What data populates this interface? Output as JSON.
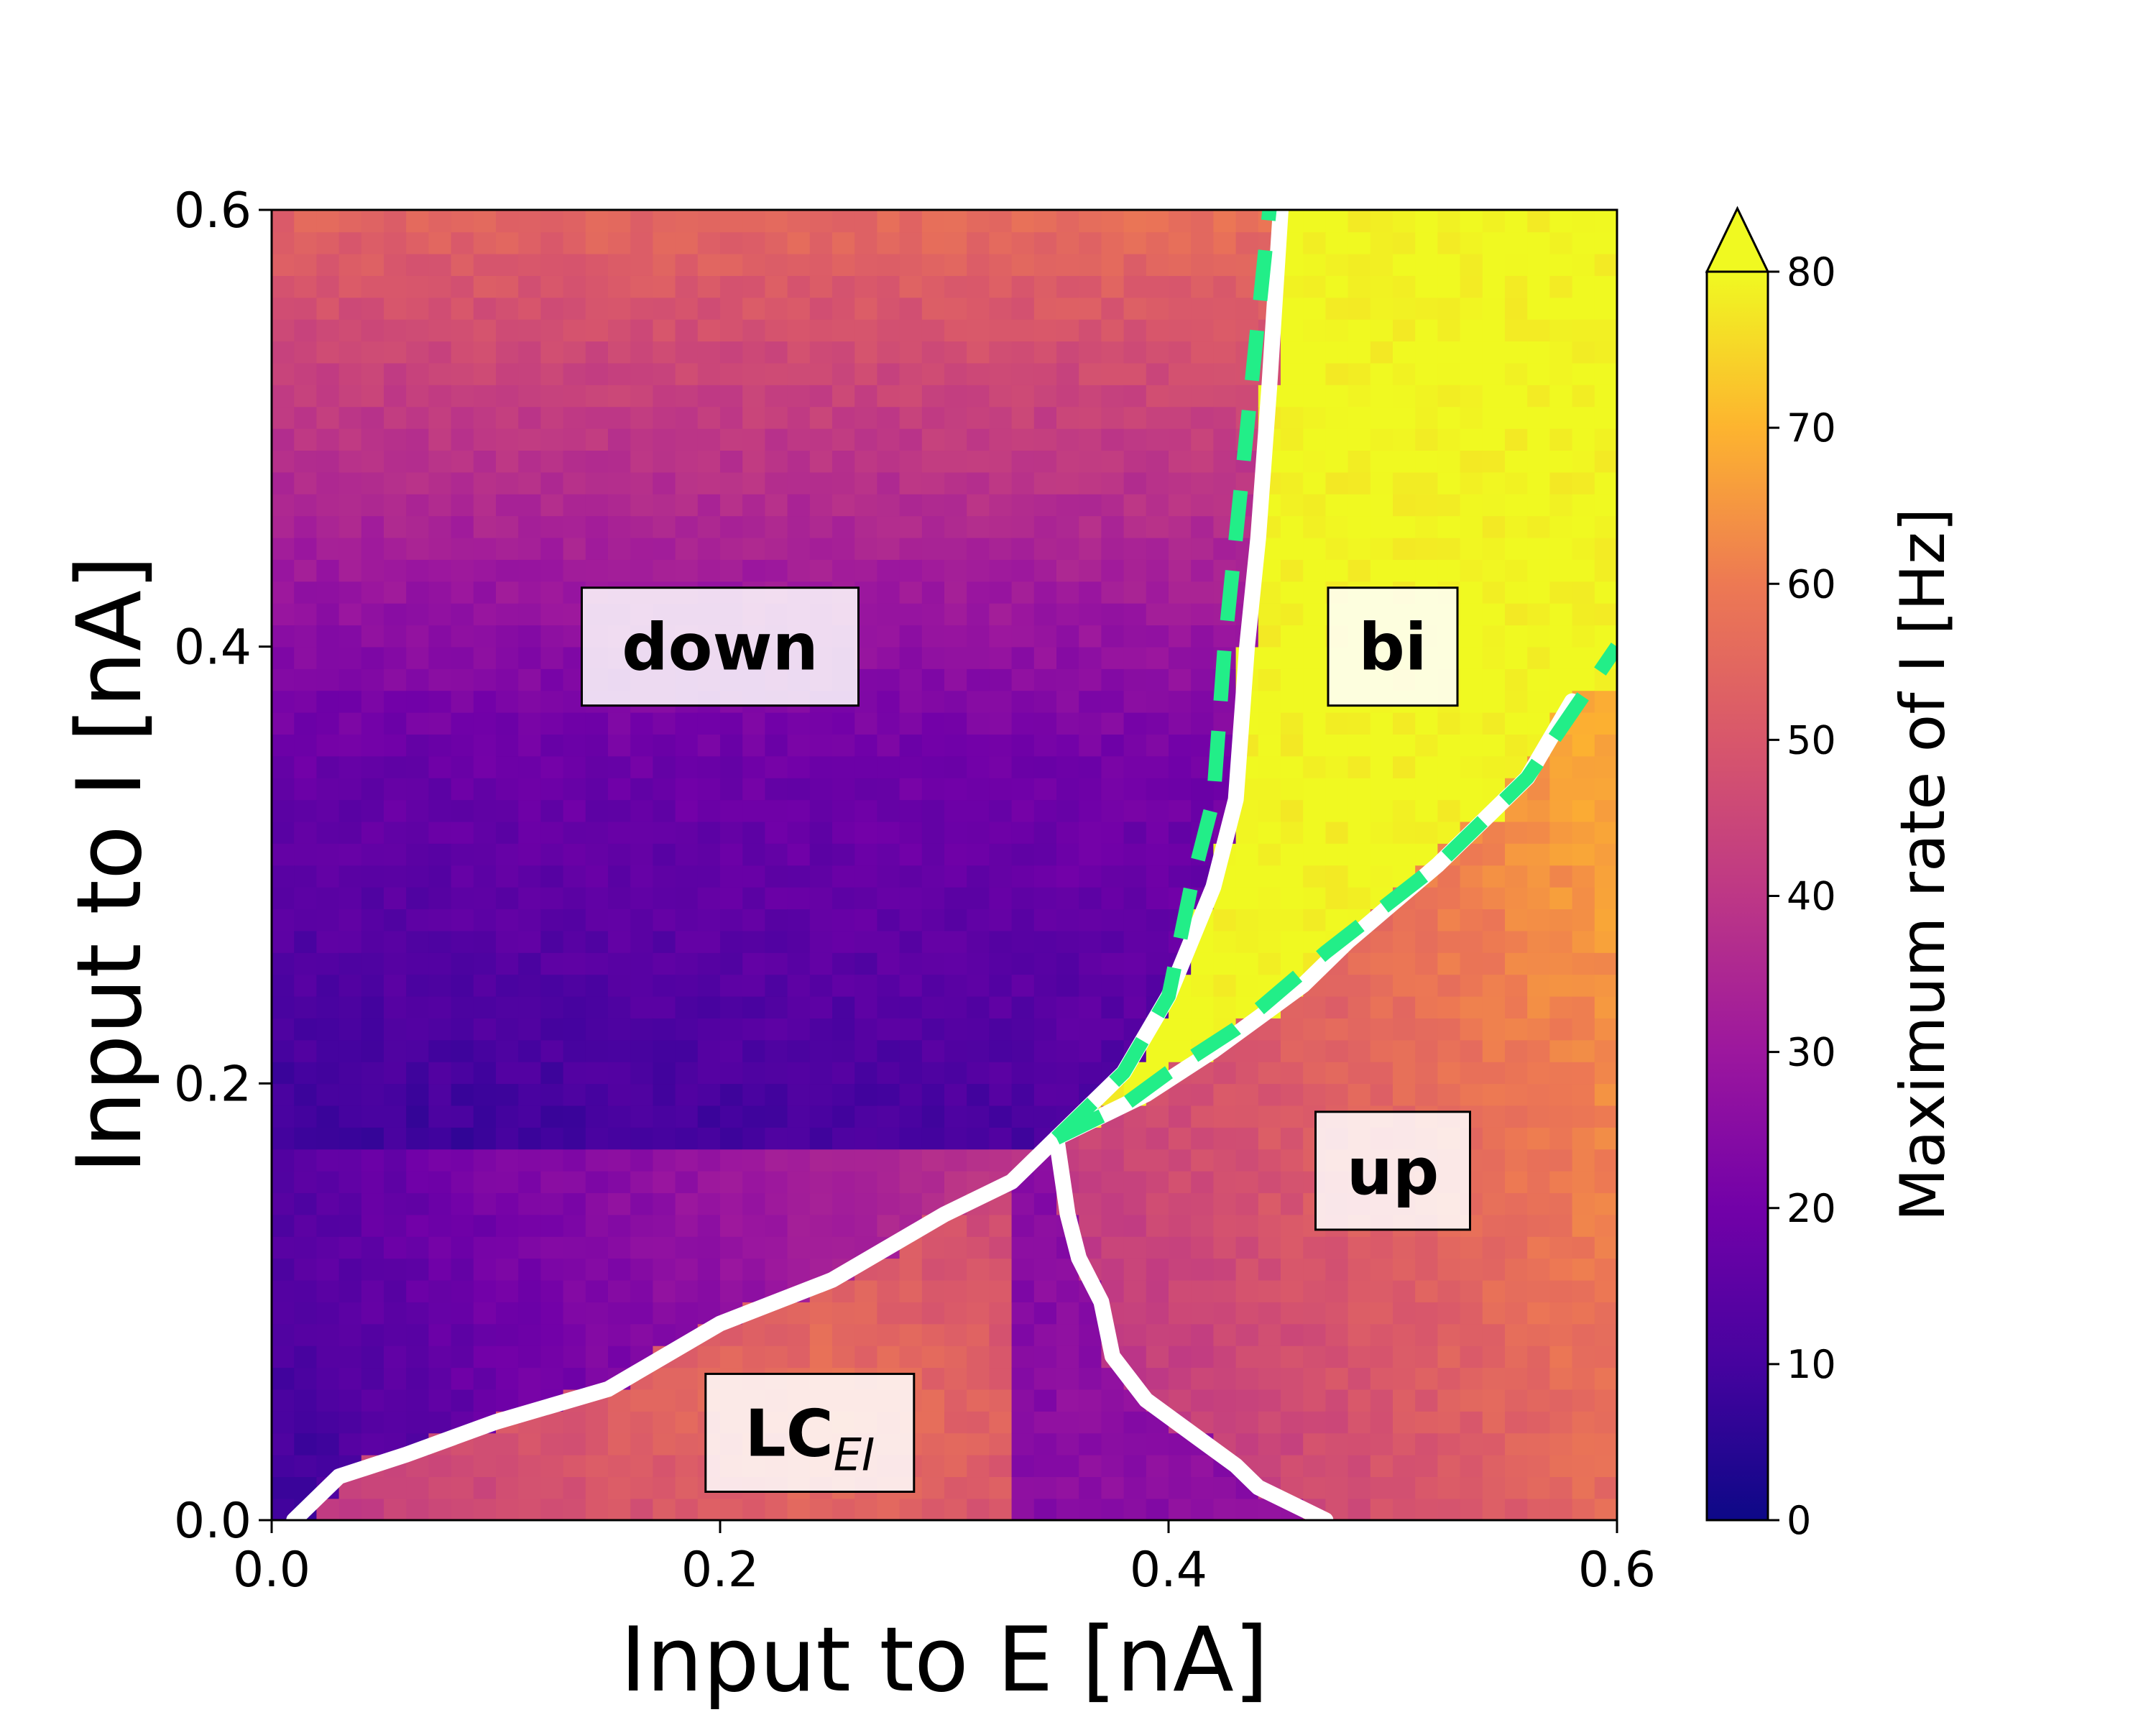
{
  "chart_data": {
    "type": "heatmap",
    "title": "",
    "xlabel": "Input to E [nA]",
    "ylabel": "Input to I [nA]",
    "xlim": [
      0.0,
      0.6
    ],
    "ylim": [
      0.0,
      0.6
    ],
    "x_ticks": [
      "0.0",
      "0.2",
      "0.4",
      "0.6"
    ],
    "y_ticks": [
      "0.0",
      "0.2",
      "0.4",
      "0.6"
    ],
    "colormap": "plasma",
    "colorbar": {
      "label": "Maximum rate of I [Hz]",
      "range": [
        0,
        80
      ],
      "ticks": [
        "0",
        "10",
        "20",
        "30",
        "40",
        "50",
        "60",
        "70",
        "80"
      ],
      "extend": "max"
    },
    "grid_resolution": 60,
    "regions": [
      {
        "label": "down",
        "x": 0.2,
        "y": 0.4
      },
      {
        "label": "bi",
        "x": 0.5,
        "y": 0.4
      },
      {
        "label": "up",
        "x": 0.5,
        "y": 0.16
      },
      {
        "label": "LC",
        "subscript": "EI",
        "x": 0.24,
        "y": 0.04
      }
    ],
    "boundaries": [
      {
        "name": "LC upper boundary",
        "color": "#ffffff",
        "style": "solid",
        "points": [
          [
            0.01,
            0.0
          ],
          [
            0.03,
            0.02
          ],
          [
            0.06,
            0.03
          ],
          [
            0.1,
            0.045
          ],
          [
            0.15,
            0.06
          ],
          [
            0.2,
            0.09
          ],
          [
            0.25,
            0.11
          ],
          [
            0.3,
            0.14
          ],
          [
            0.33,
            0.155
          ],
          [
            0.35,
            0.175
          ]
        ]
      },
      {
        "name": "LC right boundary",
        "color": "#ffffff",
        "style": "solid",
        "points": [
          [
            0.35,
            0.175
          ],
          [
            0.355,
            0.14
          ],
          [
            0.36,
            0.12
          ],
          [
            0.37,
            0.1
          ],
          [
            0.375,
            0.075
          ],
          [
            0.39,
            0.055
          ],
          [
            0.41,
            0.04
          ],
          [
            0.43,
            0.025
          ],
          [
            0.44,
            0.015
          ],
          [
            0.46,
            0.005
          ],
          [
            0.47,
            0.0
          ]
        ]
      },
      {
        "name": "bistable left boundary",
        "color": "#ffffff",
        "style": "solid",
        "points": [
          [
            0.35,
            0.175
          ],
          [
            0.38,
            0.205
          ],
          [
            0.4,
            0.24
          ],
          [
            0.42,
            0.29
          ],
          [
            0.43,
            0.33
          ],
          [
            0.435,
            0.4
          ],
          [
            0.44,
            0.45
          ],
          [
            0.445,
            0.52
          ],
          [
            0.45,
            0.6
          ]
        ]
      },
      {
        "name": "bistable right boundary",
        "color": "#ffffff",
        "style": "solid",
        "points": [
          [
            0.35,
            0.175
          ],
          [
            0.39,
            0.195
          ],
          [
            0.42,
            0.215
          ],
          [
            0.46,
            0.245
          ],
          [
            0.48,
            0.265
          ],
          [
            0.52,
            0.3
          ],
          [
            0.56,
            0.34
          ],
          [
            0.58,
            0.375
          ]
        ]
      },
      {
        "name": "bifurcation curve 1",
        "color": "#22ee88",
        "style": "dashed",
        "points": [
          [
            0.35,
            0.175
          ],
          [
            0.38,
            0.205
          ],
          [
            0.4,
            0.24
          ],
          [
            0.41,
            0.29
          ],
          [
            0.42,
            0.33
          ],
          [
            0.425,
            0.4
          ],
          [
            0.43,
            0.45
          ],
          [
            0.435,
            0.5
          ],
          [
            0.44,
            0.55
          ],
          [
            0.445,
            0.6
          ]
        ]
      },
      {
        "name": "bifurcation curve 2",
        "color": "#22ee88",
        "style": "dashed",
        "points": [
          [
            0.35,
            0.175
          ],
          [
            0.38,
            0.19
          ],
          [
            0.4,
            0.205
          ],
          [
            0.43,
            0.225
          ],
          [
            0.47,
            0.26
          ],
          [
            0.52,
            0.3
          ],
          [
            0.56,
            0.34
          ],
          [
            0.6,
            0.4
          ]
        ]
      }
    ]
  }
}
